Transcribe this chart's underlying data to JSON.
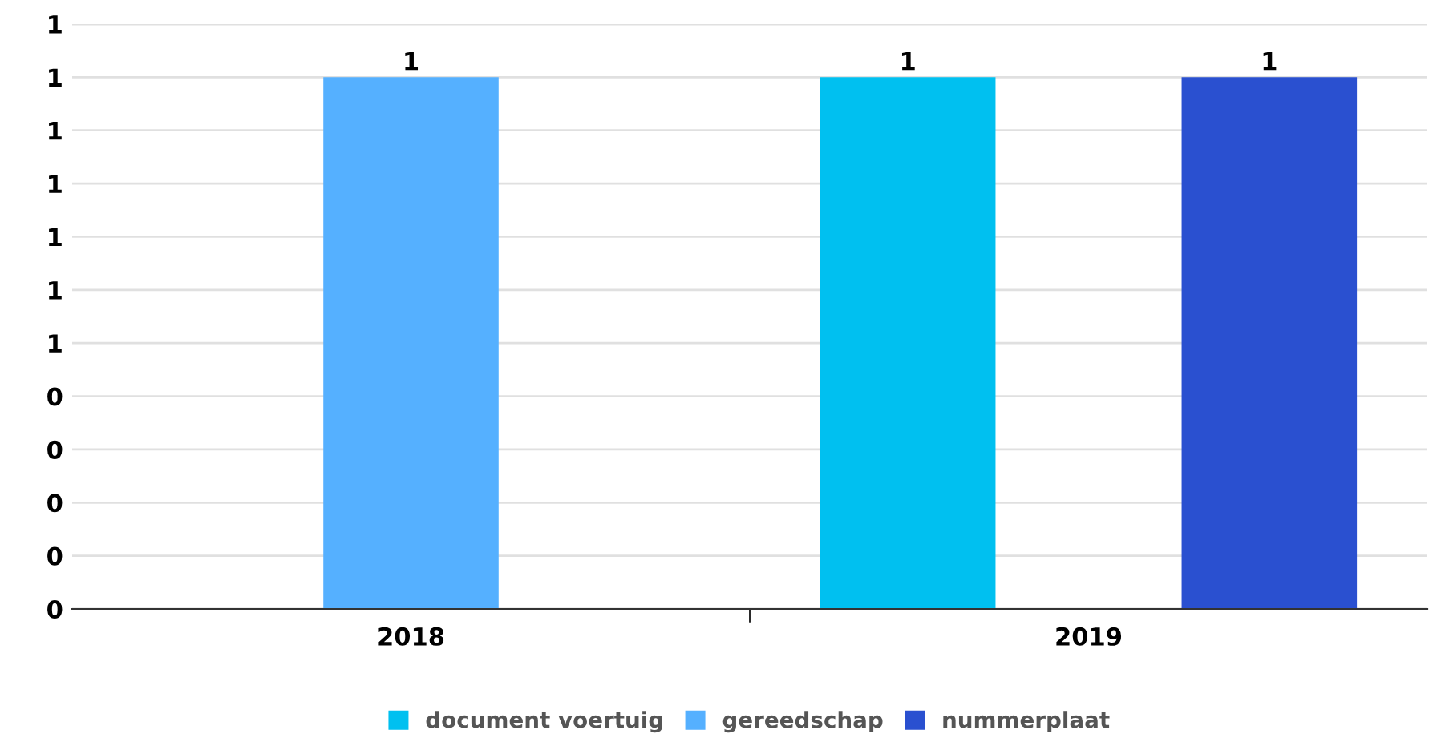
{
  "chart_data": {
    "type": "bar",
    "categories": [
      "2018",
      "2019"
    ],
    "series": [
      {
        "name": "document voertuig",
        "color": "#00c0f0",
        "values": [
          null,
          1
        ]
      },
      {
        "name": "gereedschap",
        "color": "#55b0ff",
        "values": [
          1,
          null
        ]
      },
      {
        "name": "nummerplaat",
        "color": "#2a50d0",
        "values": [
          null,
          1
        ]
      }
    ],
    "ylim": [
      0,
      1.1
    ],
    "yticks": [
      0,
      {
        "value": 0.1,
        "label": "0"
      },
      {
        "value": 0.2,
        "label": "0"
      },
      {
        "value": 0.3,
        "label": "0"
      },
      {
        "value": 0.4,
        "label": "0"
      },
      {
        "value": 0.5,
        "label": "1"
      },
      {
        "value": 0.6,
        "label": "1"
      },
      {
        "value": 0.7,
        "label": "1"
      },
      {
        "value": 0.8,
        "label": "1"
      },
      {
        "value": 0.9,
        "label": "1"
      },
      1,
      {
        "value": 1.1,
        "label": "1"
      }
    ],
    "grid": "y",
    "legend": "bottom",
    "data_labels": true
  }
}
